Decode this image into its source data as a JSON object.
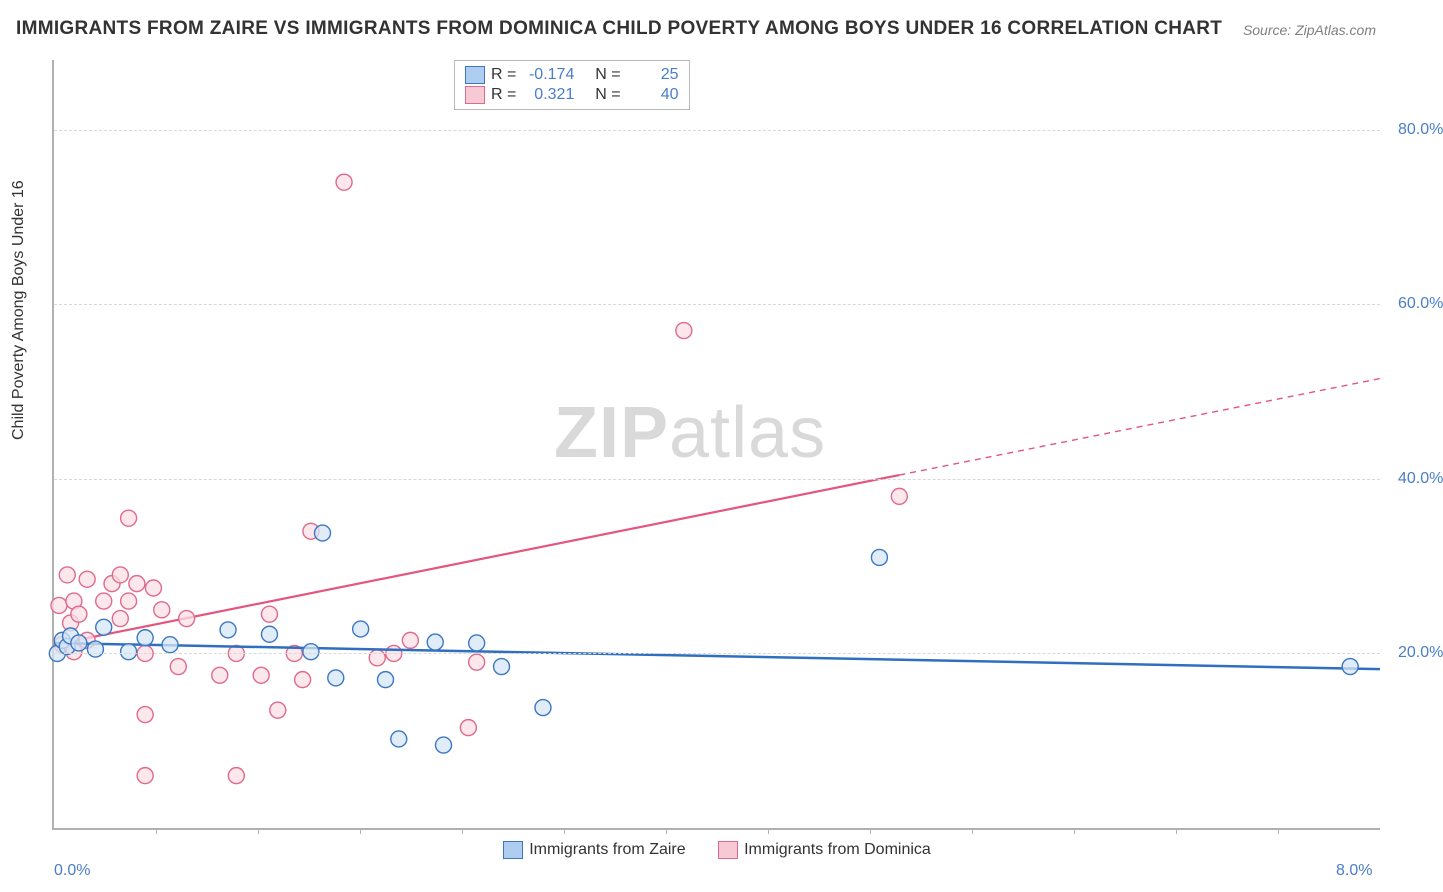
{
  "title": "IMMIGRANTS FROM ZAIRE VS IMMIGRANTS FROM DOMINICA CHILD POVERTY AMONG BOYS UNDER 16 CORRELATION CHART",
  "source": "Source: ZipAtlas.com",
  "ylabel": "Child Poverty Among Boys Under 16",
  "watermark_a": "ZIP",
  "watermark_b": "atlas",
  "chart": {
    "type": "scatter",
    "xlim": [
      0.0,
      8.0
    ],
    "ylim": [
      0.0,
      88.0
    ],
    "xticks": [
      0.0,
      8.0
    ],
    "xtick_labels": [
      "0.0%",
      "8.0%"
    ],
    "yticks": [
      20.0,
      40.0,
      60.0,
      80.0
    ],
    "ytick_labels": [
      "20.0%",
      "40.0%",
      "60.0%",
      "80.0%"
    ],
    "yticks_minor": [
      4,
      8,
      12,
      16,
      24,
      28,
      32,
      36,
      44,
      48,
      52,
      56,
      64,
      68,
      72,
      76,
      84
    ],
    "xticks_minor": [
      0.615,
      1.23,
      1.846,
      2.46,
      3.077,
      3.692,
      4.308,
      4.923,
      5.538,
      6.154,
      6.769,
      7.385
    ],
    "background_color": "#ffffff",
    "grid_color": "#d8d8d8",
    "axis_color": "#b0b0b0",
    "marker_radius": 8,
    "marker_stroke_width": 1.4,
    "series": [
      {
        "name": "Immigrants from Zaire",
        "label": "Immigrants from Zaire",
        "fill": "#d6e5f6",
        "stroke": "#3b78c4",
        "trend_stroke": "#2f6fc0",
        "trend_width": 2.5,
        "trend_solid_to_x": 8.0,
        "trend": {
          "x1": 0.0,
          "y1": 21.2,
          "x2": 8.0,
          "y2": 18.2
        },
        "points": [
          {
            "x": 0.02,
            "y": 20.0
          },
          {
            "x": 0.05,
            "y": 21.5
          },
          {
            "x": 0.08,
            "y": 20.8
          },
          {
            "x": 0.1,
            "y": 22.0
          },
          {
            "x": 0.15,
            "y": 21.2
          },
          {
            "x": 0.25,
            "y": 20.5
          },
          {
            "x": 0.3,
            "y": 23.0
          },
          {
            "x": 0.45,
            "y": 20.2
          },
          {
            "x": 0.55,
            "y": 21.8
          },
          {
            "x": 1.05,
            "y": 22.7
          },
          {
            "x": 1.3,
            "y": 22.2
          },
          {
            "x": 1.55,
            "y": 20.2
          },
          {
            "x": 1.62,
            "y": 33.8
          },
          {
            "x": 1.7,
            "y": 17.2
          },
          {
            "x": 1.85,
            "y": 22.8
          },
          {
            "x": 2.0,
            "y": 17.0
          },
          {
            "x": 2.08,
            "y": 10.2
          },
          {
            "x": 2.3,
            "y": 21.3
          },
          {
            "x": 2.35,
            "y": 9.5
          },
          {
            "x": 2.55,
            "y": 21.2
          },
          {
            "x": 2.7,
            "y": 18.5
          },
          {
            "x": 2.95,
            "y": 13.8
          },
          {
            "x": 4.98,
            "y": 31.0
          },
          {
            "x": 7.82,
            "y": 18.5
          },
          {
            "x": 0.7,
            "y": 21.0
          }
        ]
      },
      {
        "name": "Immigrants from Dominica",
        "label": "Immigrants from Dominica",
        "fill": "#fbe0e6",
        "stroke": "#e06a8c",
        "trend_stroke": "#e3567f",
        "trend_width": 2.2,
        "trend_solid_to_x": 5.1,
        "trend": {
          "x1": 0.0,
          "y1": 21.0,
          "x2": 8.0,
          "y2": 51.5
        },
        "points": [
          {
            "x": 0.03,
            "y": 25.5
          },
          {
            "x": 0.05,
            "y": 21.0
          },
          {
            "x": 0.08,
            "y": 29.0
          },
          {
            "x": 0.1,
            "y": 23.5
          },
          {
            "x": 0.12,
            "y": 26.0
          },
          {
            "x": 0.12,
            "y": 20.2
          },
          {
            "x": 0.15,
            "y": 24.5
          },
          {
            "x": 0.2,
            "y": 28.5
          },
          {
            "x": 0.2,
            "y": 21.5
          },
          {
            "x": 0.3,
            "y": 26.0
          },
          {
            "x": 0.35,
            "y": 28.0
          },
          {
            "x": 0.4,
            "y": 24.0
          },
          {
            "x": 0.4,
            "y": 29.0
          },
          {
            "x": 0.45,
            "y": 35.5
          },
          {
            "x": 0.45,
            "y": 26.0
          },
          {
            "x": 0.5,
            "y": 28.0
          },
          {
            "x": 0.55,
            "y": 20.0
          },
          {
            "x": 0.55,
            "y": 13.0
          },
          {
            "x": 0.55,
            "y": 6.0
          },
          {
            "x": 0.6,
            "y": 27.5
          },
          {
            "x": 0.65,
            "y": 25.0
          },
          {
            "x": 0.75,
            "y": 18.5
          },
          {
            "x": 0.8,
            "y": 24.0
          },
          {
            "x": 1.0,
            "y": 17.5
          },
          {
            "x": 1.1,
            "y": 20.0
          },
          {
            "x": 1.1,
            "y": 6.0
          },
          {
            "x": 1.25,
            "y": 17.5
          },
          {
            "x": 1.3,
            "y": 24.5
          },
          {
            "x": 1.35,
            "y": 13.5
          },
          {
            "x": 1.45,
            "y": 20.0
          },
          {
            "x": 1.5,
            "y": 17.0
          },
          {
            "x": 1.55,
            "y": 34.0
          },
          {
            "x": 1.75,
            "y": 74.0
          },
          {
            "x": 1.95,
            "y": 19.5
          },
          {
            "x": 2.05,
            "y": 20.0
          },
          {
            "x": 2.15,
            "y": 21.5
          },
          {
            "x": 2.5,
            "y": 11.5
          },
          {
            "x": 2.55,
            "y": 19.0
          },
          {
            "x": 3.8,
            "y": 57.0
          },
          {
            "x": 5.1,
            "y": 38.0
          }
        ]
      }
    ]
  },
  "corr_box": {
    "rows": [
      {
        "swatch": "blue",
        "r_label": "R =",
        "r_val": "-0.174",
        "n_label": "N =",
        "n_val": "25"
      },
      {
        "swatch": "pink",
        "r_label": "R =",
        "r_val": "0.321",
        "n_label": "N =",
        "n_val": "40"
      }
    ]
  },
  "legend": {
    "series1": "Immigrants from Zaire",
    "series2": "Immigrants from Dominica"
  }
}
